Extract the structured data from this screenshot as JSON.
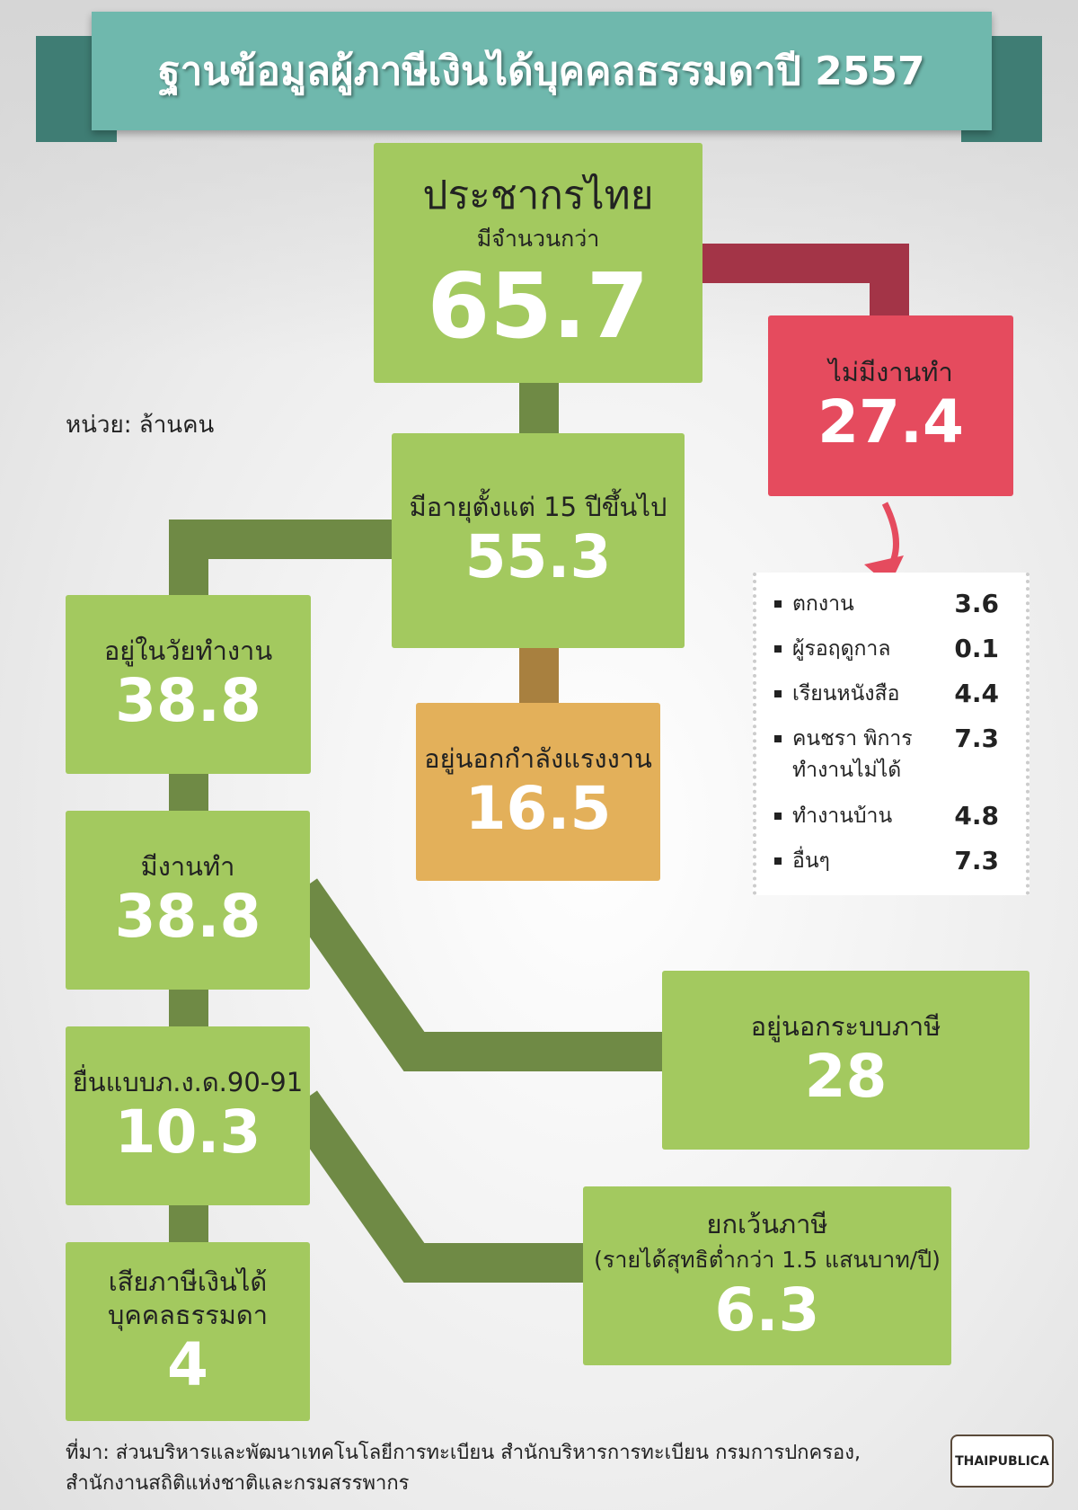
{
  "header": {
    "title": "ฐานข้อมูลผู้ภาษีเงินได้บุคคลธรรมดาปี 2557"
  },
  "unit": "หน่วย: ล้านคน",
  "nodes": [
    {
      "label": "ประชากรไทย",
      "sublabel": "มีจำนวนกว่า",
      "value": 65.7
    },
    {
      "label": "ไม่มีงานทำ",
      "value": 27.4
    },
    {
      "label": "มีอายุตั้งแต่ 15 ปีขึ้นไป",
      "value": 55.3
    },
    {
      "label": "อยู่ในวัยทำงาน",
      "value": 38.8
    },
    {
      "label": "อยู่นอกกำลังแรงงาน",
      "value": 16.5
    },
    {
      "label": "มีงานทำ",
      "value": 38.8
    },
    {
      "label": "ยื่นแบบภ.ง.ด.90-91",
      "value": 10.3
    },
    {
      "label": "อยู่นอกระบบภาษี",
      "value": 28
    },
    {
      "label": "ยกเว้นภาษี",
      "sublabel": "(รายได้สุทธิต่ำกว่า 1.5 แสนบาท/ปี)",
      "value": 6.3
    },
    {
      "label": "เสียภาษีเงินได้\nบุคคลธรรมดา",
      "value": 4
    }
  ],
  "breakdown": [
    {
      "label": "ตกงาน",
      "value": 3.6
    },
    {
      "label": "ผู้รอฤดูกาล",
      "value": 0.1
    },
    {
      "label": "เรียนหนังสือ",
      "value": 4.4
    },
    {
      "label": "คนชรา พิการ\nทำงานไม่ได้",
      "value": 7.3
    },
    {
      "label": "ทำงานบ้าน",
      "value": 4.8
    },
    {
      "label": "อื่นๆ",
      "value": 7.3
    }
  ],
  "source": [
    "ที่มา: ส่วนบริหารและพัฒนาเทคโนโลยีการทะเบียน สำนักบริหารการทะเบียน กรมการปกครอง,",
    "สำนักงานสถิติแห่งชาติและกรมสรรพากร"
  ],
  "logo": "THAIPUBLICA"
}
